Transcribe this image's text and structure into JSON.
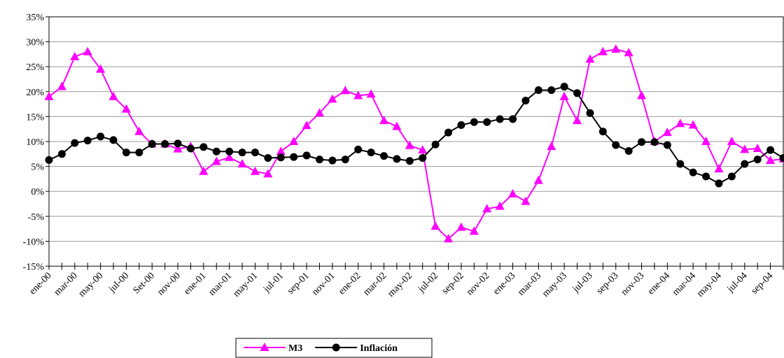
{
  "chart_data": {
    "type": "line",
    "categories": [
      "ene-00",
      null,
      "mar-00",
      null,
      "may-00",
      null,
      "jul-00",
      null,
      "Set-00",
      null,
      "nov-00",
      null,
      "ene-01",
      null,
      "mar-01",
      null,
      "may-01",
      null,
      "jul-01",
      null,
      "sep-01",
      null,
      "nov-01",
      null,
      "ene-02",
      null,
      "mar-02",
      null,
      "may-02",
      null,
      "jul-02",
      null,
      "sep-02",
      null,
      "nov-02",
      null,
      "ene-03",
      null,
      "mar-03",
      null,
      "may-03",
      null,
      "jul-03",
      null,
      "sep-03",
      null,
      "nov-03",
      null,
      "ene-04",
      null,
      "mar-04",
      null,
      "may-04",
      null,
      "jul-04",
      null,
      "sep-04",
      null
    ],
    "series": [
      {
        "name": "M3",
        "color": "#ff00ff",
        "marker": "triangle",
        "values": [
          19,
          21,
          27,
          28,
          24.5,
          19,
          16.5,
          12,
          9.5,
          9.5,
          8.5,
          9,
          4,
          6,
          6.8,
          5.5,
          4,
          3.5,
          8,
          10,
          13.2,
          15.7,
          18.5,
          20.2,
          19.2,
          19.5,
          14.2,
          13,
          9.2,
          8.3,
          -7,
          -9.5,
          -7.2,
          -8,
          -3.5,
          -3,
          -0.5,
          -2,
          2.2,
          9,
          19,
          14.2,
          26.5,
          28,
          28.5,
          27.8,
          19.2,
          10,
          11.8,
          13.6,
          13.3,
          10,
          4.5,
          10,
          8.4,
          8.6,
          6.2,
          6.5
        ]
      },
      {
        "name": "Inflación",
        "color": "#000000",
        "marker": "circle",
        "values": [
          6.3,
          7.5,
          9.7,
          10.2,
          11,
          10.3,
          7.8,
          7.8,
          9.5,
          9.5,
          9.6,
          8.6,
          8.9,
          8.0,
          8.0,
          7.8,
          7.8,
          6.7,
          6.8,
          6.9,
          7.2,
          6.4,
          6.2,
          6.4,
          8.4,
          7.8,
          7.1,
          6.5,
          6.1,
          6.7,
          9.4,
          11.8,
          13.3,
          13.9,
          13.9,
          14.5,
          14.5,
          18.2,
          20.3,
          20.3,
          21,
          19.7,
          15.7,
          12,
          9.3,
          8.1,
          9.9,
          9.9,
          9.3,
          5.5,
          3.8,
          3.0,
          1.6,
          3.0,
          5.5,
          6.4,
          8.3,
          6.7
        ]
      }
    ],
    "ylim": [
      -15,
      35
    ],
    "yticks": [
      {
        "value": -15,
        "label": "-15%"
      },
      {
        "value": -10,
        "label": "-10%"
      },
      {
        "value": -5,
        "label": "-5%"
      },
      {
        "value": 0,
        "label": "0%"
      },
      {
        "value": 5,
        "label": "5%"
      },
      {
        "value": 10,
        "label": "10%"
      },
      {
        "value": 15,
        "label": "15%"
      },
      {
        "value": 20,
        "label": "20%"
      },
      {
        "value": 25,
        "label": "25%"
      },
      {
        "value": 30,
        "label": "30%"
      },
      {
        "value": 35,
        "label": "35%"
      }
    ],
    "grid": true,
    "legend": "bottom"
  }
}
